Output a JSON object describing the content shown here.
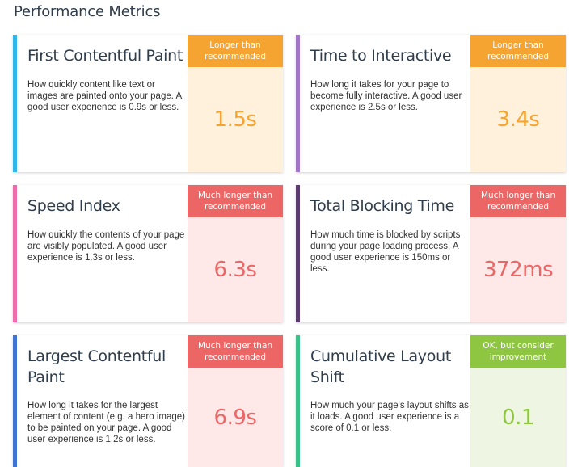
{
  "page": {
    "title": "Performance Metrics"
  },
  "status": {
    "longer": "Longer than recommended",
    "much_longer": "Much longer than recommended",
    "ok": "OK, but consider improvement"
  },
  "colors": {
    "fcp_accent": "#30b6ea",
    "tti_accent": "#a275c7",
    "si_accent": "#ee6bab",
    "tbt_accent": "#5c3b6f",
    "lcp_accent": "#3f74d4",
    "cls_accent": "#3cc08a",
    "orange": "#f5a431",
    "red": "#ec6666",
    "green": "#8ec641"
  },
  "metrics": [
    {
      "title": "First Contentful Paint",
      "description": "How quickly content like text or images are painted onto your page. A good user experience is 0.9s or less.",
      "status": "Longer than recommended",
      "value": "1.5s"
    },
    {
      "title": "Time to Interactive",
      "description": "How long it takes for your page to become fully interactive. A good user experience is 2.5s or less.",
      "status": "Longer than recommended",
      "value": "3.4s"
    },
    {
      "title": "Speed Index",
      "description": "How quickly the contents of your page are visibly populated. A good user experience is 1.3s or less.",
      "status": "Much longer than recommended",
      "value": "6.3s"
    },
    {
      "title": "Total Blocking Time",
      "description": "How much time is blocked by scripts during your page loading process. A good user experience is 150ms or less.",
      "status": "Much longer than recommended",
      "value": "372ms"
    },
    {
      "title": "Largest Contentful Paint",
      "description": "How long it takes for the largest element of content (e.g. a hero image) to be painted on your page. A good user experience is 1.2s or less.",
      "status": "Much longer than recommended",
      "value": "6.9s"
    },
    {
      "title": "Cumulative Layout Shift",
      "description": "How much your page's layout shifts as it loads. A good user experience is a score of 0.1 or less.",
      "status": "OK, but consider improvement",
      "value": "0.1"
    }
  ]
}
